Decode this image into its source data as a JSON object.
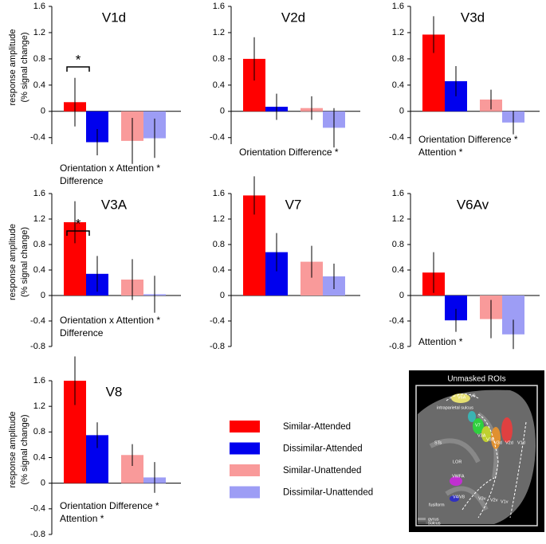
{
  "chart_data": [
    {
      "type": "bar",
      "title": "V1d",
      "y_label": [
        "response amplitude",
        "(% signal change)"
      ],
      "ylim": [
        -0.5,
        1.6
      ],
      "yticks": [
        -0.4,
        0,
        0.4,
        0.8,
        1.2,
        1.6
      ],
      "significance": "*",
      "annotations": [
        "Orientation x Attention *",
        "Difference"
      ],
      "series": [
        {
          "name": "Similar-Attended",
          "color": "#ff0000",
          "values": [
            0.14
          ],
          "errors": [
            0.37
          ]
        },
        {
          "name": "Dissimilar-Attended",
          "color": "#0000ee",
          "values": [
            -0.47
          ],
          "errors": [
            0.2
          ]
        },
        {
          "name": "Similar-Unattended",
          "color": "#f99a9a",
          "values": [
            -0.45
          ],
          "errors": [
            0.35
          ]
        },
        {
          "name": "Dissimilar-Unattended",
          "color": "#9d9df5",
          "values": [
            -0.41
          ],
          "errors": [
            0.3
          ]
        }
      ]
    },
    {
      "type": "bar",
      "title": "V2d",
      "ylim": [
        -0.5,
        1.6
      ],
      "yticks": [
        -0.4,
        0,
        0.4,
        0.8,
        1.2,
        1.6
      ],
      "annotations": [
        "Orientation Difference *"
      ],
      "series": [
        {
          "name": "Similar-Attended",
          "color": "#ff0000",
          "values": [
            0.8
          ],
          "errors": [
            0.33
          ]
        },
        {
          "name": "Dissimilar-Attended",
          "color": "#0000ee",
          "values": [
            0.07
          ],
          "errors": [
            0.2
          ]
        },
        {
          "name": "Similar-Unattended",
          "color": "#f99a9a",
          "values": [
            0.05
          ],
          "errors": [
            0.18
          ]
        },
        {
          "name": "Dissimilar-Unattended",
          "color": "#9d9df5",
          "values": [
            -0.25
          ],
          "errors": [
            0.3
          ]
        }
      ]
    },
    {
      "type": "bar",
      "title": "V3d",
      "ylim": [
        -0.5,
        1.6
      ],
      "yticks": [
        -0.4,
        0,
        0.4,
        0.8,
        1.2,
        1.6
      ],
      "annotations": [
        "Orientation Difference *",
        "Attention *"
      ],
      "series": [
        {
          "name": "Similar-Attended",
          "color": "#ff0000",
          "values": [
            1.17
          ],
          "errors": [
            0.28
          ]
        },
        {
          "name": "Dissimilar-Attended",
          "color": "#0000ee",
          "values": [
            0.46
          ],
          "errors": [
            0.23
          ]
        },
        {
          "name": "Similar-Unattended",
          "color": "#f99a9a",
          "values": [
            0.18
          ],
          "errors": [
            0.15
          ]
        },
        {
          "name": "Dissimilar-Unattended",
          "color": "#9d9df5",
          "values": [
            -0.17
          ],
          "errors": [
            0.18
          ]
        }
      ]
    },
    {
      "type": "bar",
      "title": "V3A",
      "y_label": [
        "response amplitude",
        "(% signal change)"
      ],
      "ylim": [
        -0.8,
        1.6
      ],
      "yticks": [
        -0.8,
        -0.4,
        0,
        0.4,
        0.8,
        1.2,
        1.6
      ],
      "significance": "*",
      "annotations": [
        "Orientation x Attention *",
        "Difference"
      ],
      "series": [
        {
          "name": "Similar-Attended",
          "color": "#ff0000",
          "values": [
            1.15
          ],
          "errors": [
            0.33
          ]
        },
        {
          "name": "Dissimilar-Attended",
          "color": "#0000ee",
          "values": [
            0.34
          ],
          "errors": [
            0.28
          ]
        },
        {
          "name": "Similar-Unattended",
          "color": "#f99a9a",
          "values": [
            0.25
          ],
          "errors": [
            0.32
          ]
        },
        {
          "name": "Dissimilar-Unattended",
          "color": "#9d9df5",
          "values": [
            0.02
          ],
          "errors": [
            0.29
          ]
        }
      ]
    },
    {
      "type": "bar",
      "title": "V7",
      "ylim": [
        -0.8,
        1.6
      ],
      "yticks": [
        -0.8,
        -0.4,
        0,
        0.4,
        0.8,
        1.2,
        1.6
      ],
      "series": [
        {
          "name": "Similar-Attended",
          "color": "#ff0000",
          "values": [
            1.57
          ],
          "errors": [
            0.3
          ]
        },
        {
          "name": "Dissimilar-Attended",
          "color": "#0000ee",
          "values": [
            0.68
          ],
          "errors": [
            0.3
          ]
        },
        {
          "name": "Similar-Unattended",
          "color": "#f99a9a",
          "values": [
            0.53
          ],
          "errors": [
            0.25
          ]
        },
        {
          "name": "Dissimilar-Unattended",
          "color": "#9d9df5",
          "values": [
            0.3
          ],
          "errors": [
            0.2
          ]
        }
      ]
    },
    {
      "type": "bar",
      "title": "V6Av",
      "ylim": [
        -0.8,
        1.6
      ],
      "yticks": [
        -0.8,
        -0.4,
        0,
        0.4,
        0.8,
        1.2,
        1.6
      ],
      "annotations": [
        "Attention *"
      ],
      "series": [
        {
          "name": "Similar-Attended",
          "color": "#ff0000",
          "values": [
            0.36
          ],
          "errors": [
            0.32
          ]
        },
        {
          "name": "Dissimilar-Attended",
          "color": "#0000ee",
          "values": [
            -0.39
          ],
          "errors": [
            0.18
          ]
        },
        {
          "name": "Similar-Unattended",
          "color": "#f99a9a",
          "values": [
            -0.37
          ],
          "errors": [
            0.3
          ]
        },
        {
          "name": "Dissimilar-Unattended",
          "color": "#9d9df5",
          "values": [
            -0.61
          ],
          "errors": [
            0.23
          ]
        }
      ]
    },
    {
      "type": "bar",
      "title": "V8",
      "y_label": [
        "response amplitude",
        "(% signal change)"
      ],
      "ylim": [
        -0.8,
        1.6
      ],
      "yticks": [
        -0.8,
        -0.4,
        0,
        0.4,
        0.8,
        1.2,
        1.6
      ],
      "annotations": [
        "Orientation Difference *",
        "Attention *"
      ],
      "legend": true,
      "series": [
        {
          "name": "Similar-Attended",
          "color": "#ff0000",
          "values": [
            1.6
          ],
          "errors": [
            0.38
          ]
        },
        {
          "name": "Dissimilar-Attended",
          "color": "#0000ee",
          "values": [
            0.75
          ],
          "errors": [
            0.2
          ]
        },
        {
          "name": "Similar-Unattended",
          "color": "#f99a9a",
          "values": [
            0.44
          ],
          "errors": [
            0.17
          ]
        },
        {
          "name": "Dissimilar-Unattended",
          "color": "#9d9df5",
          "values": [
            0.09
          ],
          "errors": [
            0.24
          ]
        }
      ]
    }
  ],
  "inset": {
    "title": "Unmasked ROIs",
    "labels": [
      "V6A",
      "V6",
      "intraparietal sulcus",
      "V7",
      "V3A",
      "V3B",
      "V3d",
      "V2d",
      "V1d",
      "STs",
      "LOR",
      "VWFA",
      "V4/V8",
      "fusiform",
      "V3v",
      "V2v",
      "V1v"
    ],
    "key": [
      "gyrus",
      "sulcus"
    ]
  }
}
